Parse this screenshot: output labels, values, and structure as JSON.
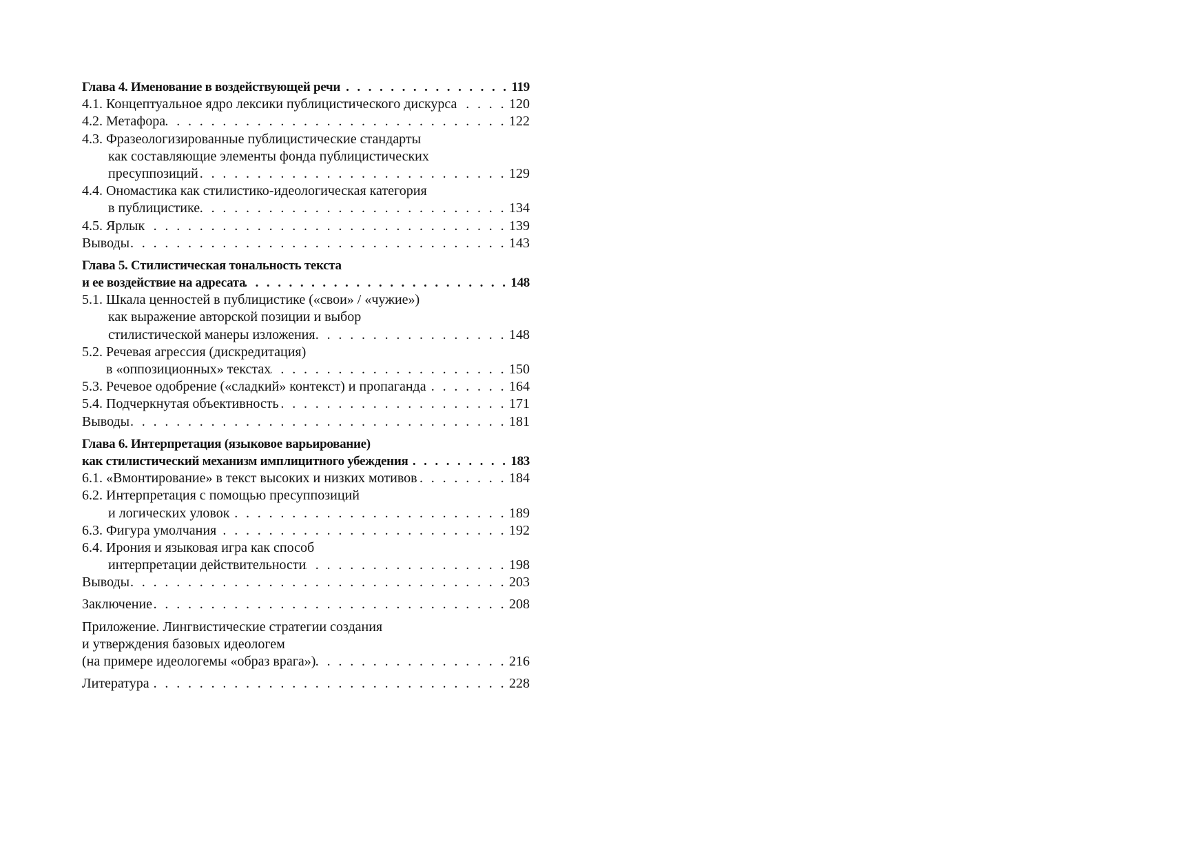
{
  "toc": {
    "entries": [
      {
        "lines": [
          "Глава 4. Именование в  воздействующей речи"
        ],
        "page": "119",
        "bold": true,
        "group": false
      },
      {
        "lines": [
          "4.1. Концептуальное ядро лексики публицистического дискурса"
        ],
        "page": "120"
      },
      {
        "lines": [
          "4.2. Метафора"
        ],
        "page": "122"
      },
      {
        "lines": [
          "4.3. Фразеологизированные публицистические стандарты",
          "как составляющие элементы фонда публицистических",
          "пресуппозиций"
        ],
        "page": "129"
      },
      {
        "lines": [
          "4.4. Ономастика как стилистико-идеологическая категория",
          "в  публицистике"
        ],
        "page": "134"
      },
      {
        "lines": [
          "4.5. Ярлык"
        ],
        "page": "139"
      },
      {
        "lines": [
          "Выводы"
        ],
        "page": "143"
      },
      {
        "lines": [
          "Глава 5. Стилистическая тональность текста",
          "и ее  воздействие на адресата"
        ],
        "page": "148",
        "bold": true,
        "group": true,
        "noindent": true
      },
      {
        "lines": [
          "5.1. Шкала ценностей в публицистике («свои» / «чужие»)",
          "как выражение авторской позиции и выбор",
          "стилистической манеры изложения"
        ],
        "page": "148"
      },
      {
        "lines": [
          "5.2. Речевая агрессия (дискредитация)",
          "в «оппозиционных» текстах"
        ],
        "page": "150",
        "narrow": true
      },
      {
        "lines": [
          "5.3. Речевое одобрение («сладкий» контекст) и пропаганда"
        ],
        "page": "164"
      },
      {
        "lines": [
          "5.4. Подчеркнутая объективность"
        ],
        "page": "171"
      },
      {
        "lines": [
          "Выводы"
        ],
        "page": "181"
      },
      {
        "lines": [
          "Глава 6. Интерпретация (языковое варьирование)",
          "как стилистический механизм имплицитного убеждения"
        ],
        "page": "183",
        "bold": true,
        "group": true,
        "noindent": true
      },
      {
        "lines": [
          "6.1. «Вмонтирование» в текст высоких и низких мотивов"
        ],
        "page": "184"
      },
      {
        "lines": [
          "6.2. Интерпретация с помощью пресуппозиций",
          "и логических уловок"
        ],
        "page": "189"
      },
      {
        "lines": [
          "6.3. Фигура умолчания"
        ],
        "page": "192"
      },
      {
        "lines": [
          "6.4. Ирония и языковая игра как способ",
          "интерпретации действительности"
        ],
        "page": "198"
      },
      {
        "lines": [
          "Выводы"
        ],
        "page": "203"
      },
      {
        "lines": [
          "Заключение"
        ],
        "page": "208",
        "group": true
      },
      {
        "lines": [
          "Приложение. Лингвистические стратегии создания",
          "и утверждения базовых идеологем",
          "(на примере идеологемы «образ врага»)"
        ],
        "page": "216",
        "group": true,
        "noindent": true
      },
      {
        "lines": [
          "Литература"
        ],
        "page": "228",
        "group": true
      }
    ]
  }
}
